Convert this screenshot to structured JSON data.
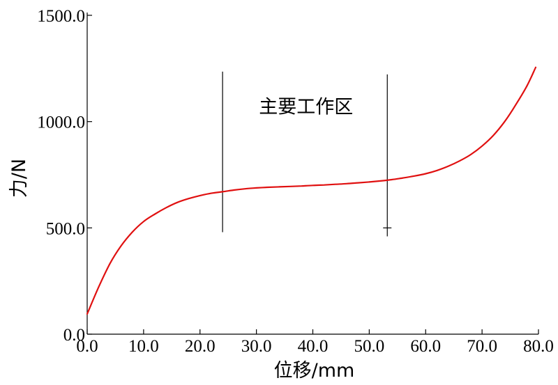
{
  "colors": {
    "series": "#e01010",
    "axis": "#000000",
    "marker": "#000000"
  },
  "chart_data": {
    "type": "line",
    "title": "",
    "xlabel": "位移/mm",
    "ylabel": "力/N",
    "xlim": [
      0,
      80
    ],
    "ylim": [
      0,
      1500
    ],
    "grid": false,
    "legend": "none",
    "x_ticks": [
      {
        "value": 0,
        "label": "0.0"
      },
      {
        "value": 10,
        "label": "10.0"
      },
      {
        "value": 20,
        "label": "20.0"
      },
      {
        "value": 30,
        "label": "30.0"
      },
      {
        "value": 40,
        "label": "40.0"
      },
      {
        "value": 50,
        "label": "50.0"
      },
      {
        "value": 60,
        "label": "60.0"
      },
      {
        "value": 70,
        "label": "70.0"
      },
      {
        "value": 80,
        "label": "80.0"
      }
    ],
    "y_ticks": [
      {
        "value": 0,
        "label": "0.0"
      },
      {
        "value": 500,
        "label": "500.0"
      },
      {
        "value": 1000,
        "label": "1000.0"
      },
      {
        "value": 1500,
        "label": "1500.0"
      }
    ],
    "series": [
      {
        "x": [
          0,
          2,
          4,
          6,
          8,
          10,
          12,
          14,
          16,
          18,
          20,
          22,
          24,
          26,
          28,
          30,
          32,
          34,
          36,
          38,
          40,
          42,
          44,
          46,
          48,
          50,
          52,
          54,
          56,
          58,
          60,
          62,
          64,
          66,
          68,
          70,
          72,
          74,
          76,
          78,
          79.5
        ],
        "y": [
          95,
          220,
          330,
          415,
          480,
          530,
          565,
          595,
          620,
          638,
          652,
          663,
          670,
          678,
          684,
          688,
          691,
          693,
          695,
          697,
          700,
          702,
          705,
          708,
          712,
          716,
          721,
          727,
          735,
          744,
          755,
          770,
          790,
          815,
          845,
          885,
          935,
          1000,
          1080,
          1170,
          1255
        ]
      }
    ],
    "markers": [
      {
        "x": 24.0,
        "y_min": 480,
        "y_max": 1235
      },
      {
        "x": 53.2,
        "y_min": 460,
        "y_max": 1222
      }
    ],
    "annotations": [
      {
        "text": "主要工作区",
        "x": 38.8,
        "y": 1040
      }
    ]
  }
}
